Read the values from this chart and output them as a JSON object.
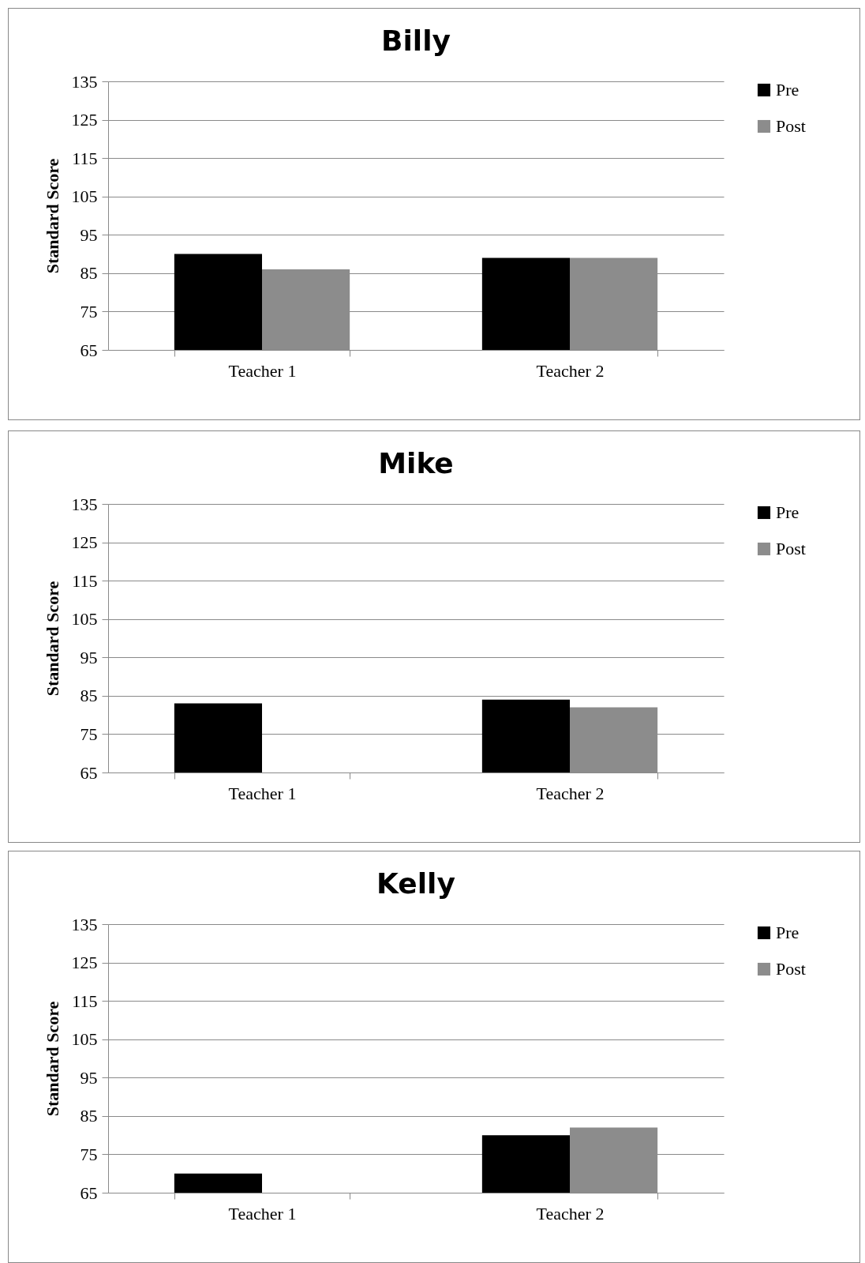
{
  "chart_data": [
    {
      "type": "bar",
      "title": "Billy",
      "ylabel": "Standard Score",
      "categories": [
        "Teacher 1",
        "Teacher 2"
      ],
      "ylim": [
        65,
        135
      ],
      "yticks": [
        65,
        75,
        85,
        95,
        105,
        115,
        125,
        135
      ],
      "grid": "y",
      "legend": "right",
      "series": [
        {
          "name": "Pre",
          "color": "#000000",
          "values": [
            90,
            89
          ]
        },
        {
          "name": "Post",
          "color": "#8c8c8c",
          "values": [
            86,
            89
          ]
        }
      ]
    },
    {
      "type": "bar",
      "title": "Mike",
      "ylabel": "Standard Score",
      "categories": [
        "Teacher 1",
        "Teacher 2"
      ],
      "ylim": [
        65,
        135
      ],
      "yticks": [
        65,
        75,
        85,
        95,
        105,
        115,
        125,
        135
      ],
      "grid": "y",
      "legend": "right",
      "series": [
        {
          "name": "Pre",
          "color": "#000000",
          "values": [
            83,
            84
          ]
        },
        {
          "name": "Post",
          "color": "#8c8c8c",
          "values": [
            null,
            82
          ]
        }
      ]
    },
    {
      "type": "bar",
      "title": "Kelly",
      "ylabel": "Standard Score",
      "categories": [
        "Teacher 1",
        "Teacher 2"
      ],
      "ylim": [
        65,
        135
      ],
      "yticks": [
        65,
        75,
        85,
        95,
        105,
        115,
        125,
        135
      ],
      "grid": "y",
      "legend": "right",
      "series": [
        {
          "name": "Pre",
          "color": "#000000",
          "values": [
            70,
            80
          ]
        },
        {
          "name": "Post",
          "color": "#8c8c8c",
          "values": [
            null,
            82
          ]
        }
      ]
    }
  ]
}
